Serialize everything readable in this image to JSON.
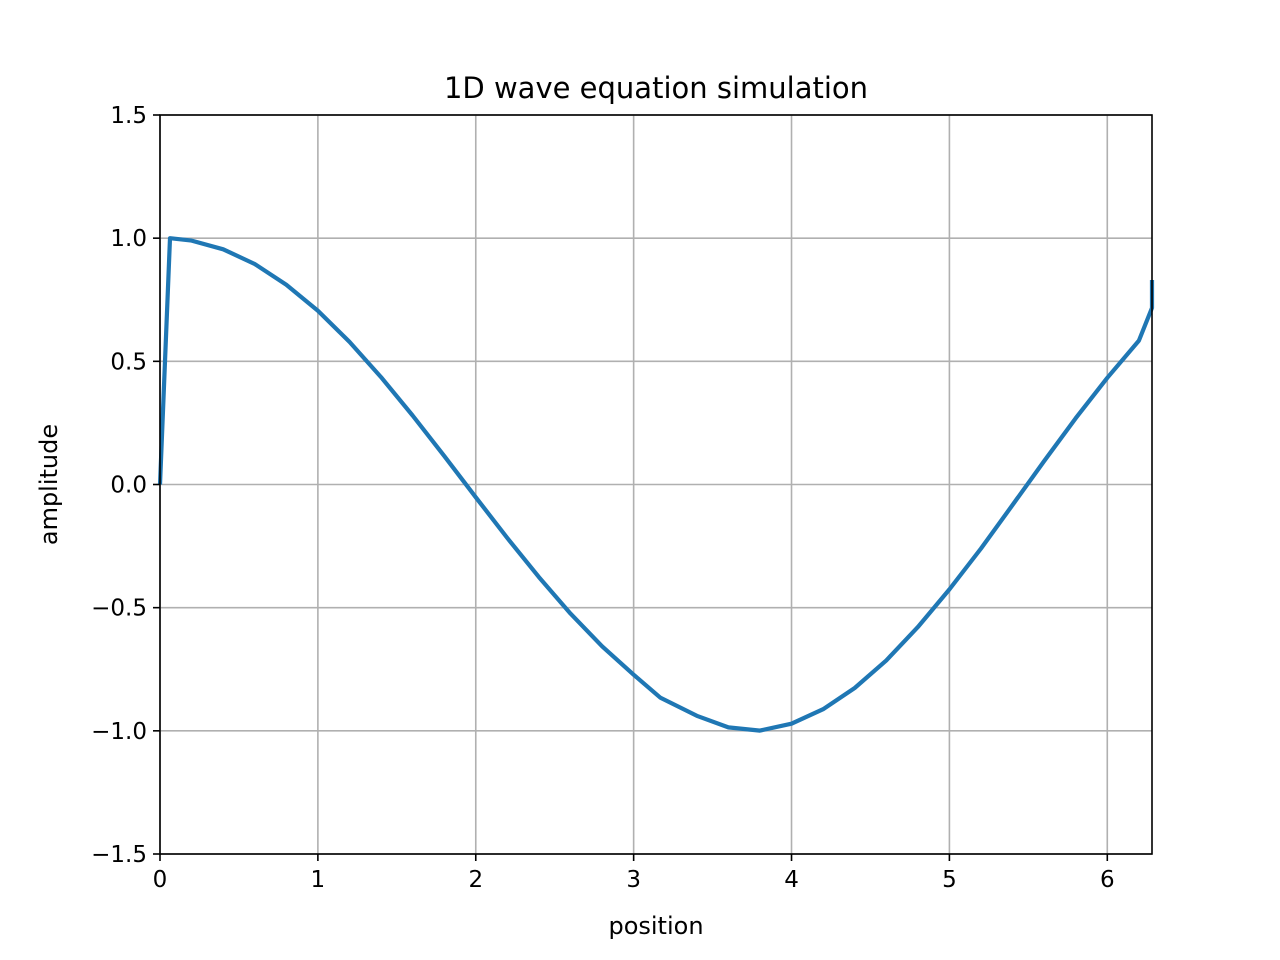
{
  "chart_data": {
    "type": "line",
    "title": "1D wave equation simulation",
    "xlabel": "position",
    "ylabel": "amplitude",
    "xlim": [
      0,
      6.2832
    ],
    "ylim": [
      -1.5,
      1.5
    ],
    "x_ticks": [
      0,
      1,
      2,
      3,
      4,
      5,
      6
    ],
    "y_ticks": [
      -1.5,
      -1.0,
      -0.5,
      0.0,
      0.5,
      1.0,
      1.5
    ],
    "x_tick_labels": [
      "0",
      "1",
      "2",
      "3",
      "4",
      "5",
      "6"
    ],
    "y_tick_labels": [
      "−1.5",
      "−1.0",
      "−0.5",
      "0.0",
      "0.5",
      "1.0",
      "1.5"
    ],
    "grid": true,
    "series": [
      {
        "color": "#1f77b4",
        "x": [
          0,
          0.0634,
          0.2,
          0.4,
          0.6,
          0.8,
          1.0,
          1.2,
          1.4,
          1.6,
          1.8,
          2.0,
          2.2,
          2.4,
          2.6,
          2.8,
          3.0,
          3.17,
          3.4,
          3.6,
          3.8,
          4.0,
          4.2,
          4.4,
          4.6,
          4.8,
          5.0,
          5.2,
          5.4,
          5.6,
          5.8,
          6.0,
          6.2,
          6.2832,
          6.2832
        ],
        "y": [
          0.0,
          1.0,
          0.99,
          0.955,
          0.895,
          0.811,
          0.705,
          0.579,
          0.436,
          0.28,
          0.116,
          -0.052,
          -0.217,
          -0.376,
          -0.524,
          -0.657,
          -0.772,
          -0.866,
          -0.939,
          -0.986,
          -0.999,
          -0.971,
          -0.912,
          -0.826,
          -0.714,
          -0.579,
          -0.426,
          -0.26,
          -0.083,
          0.095,
          0.269,
          0.433,
          0.584,
          0.717,
          0.83
        ]
      }
    ]
  }
}
